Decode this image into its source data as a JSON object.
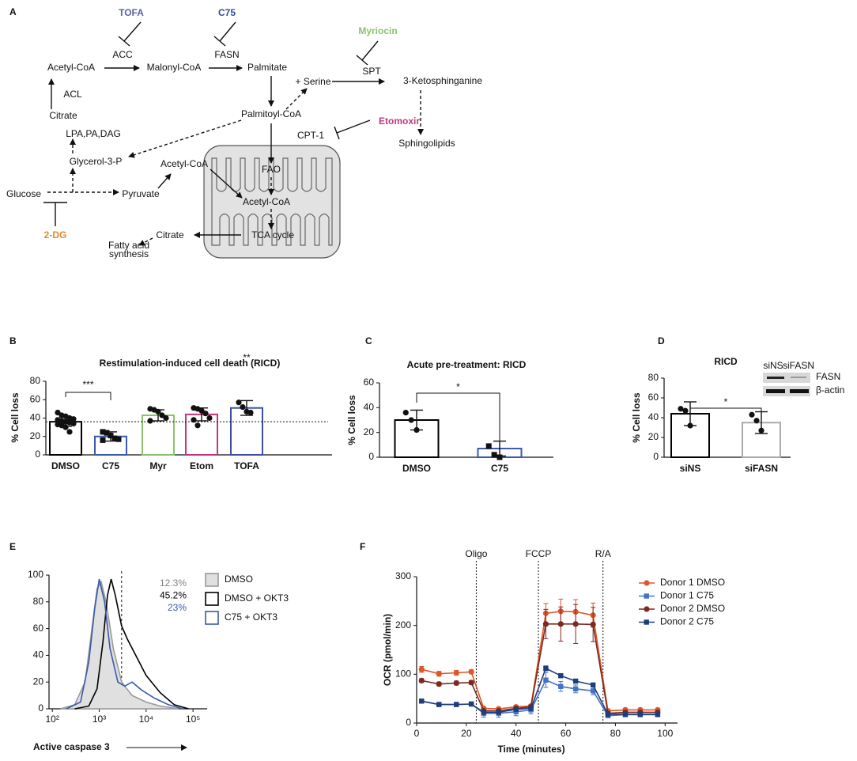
{
  "panel_labels": [
    "A",
    "B",
    "C",
    "D",
    "E",
    "F"
  ],
  "diagram": {
    "nodes": [
      {
        "label": "TOFA",
        "color": "#5b5fa8"
      },
      {
        "label": "C75",
        "color": "#2c4e9a"
      },
      {
        "label": "Myriocin",
        "color": "#8cc26b"
      },
      {
        "label": "ACC"
      },
      {
        "label": "FASN"
      },
      {
        "label": "SPT"
      },
      {
        "label": "Acetyl-CoA"
      },
      {
        "label": "Malonyl-CoA"
      },
      {
        "label": "Palmitate"
      },
      {
        "label": "+ Serine"
      },
      {
        "label": "3-Ketosphinganine"
      },
      {
        "label": "ACL"
      },
      {
        "label": "Citrate"
      },
      {
        "label": "Palmitoyl-CoA"
      },
      {
        "label": "Etomoxir",
        "color": "#c2377f"
      },
      {
        "label": "CPT-1"
      },
      {
        "label": "LPA,PA,DAG"
      },
      {
        "label": "Glycerol-3-P"
      },
      {
        "label": "Acetyl-CoA"
      },
      {
        "label": "Sphingolipids"
      },
      {
        "label": "FAO"
      },
      {
        "label": "Glucose"
      },
      {
        "label": "Pyruvate"
      },
      {
        "label": "Acetyl-CoA"
      },
      {
        "label": "TCA cycle"
      },
      {
        "label": "2-DG",
        "color": "#e08a2b"
      },
      {
        "label": "Citrate"
      },
      {
        "lines": [
          "Fatty acid",
          "synthesis"
        ]
      }
    ]
  },
  "chart_data": [
    {
      "type": "bar",
      "title": "Restimulation-induced cell death (RICD)",
      "ylabel": "% Cell loss",
      "categories": [
        "DMSO",
        "C75",
        "Myr",
        "Etom",
        "TOFA"
      ],
      "values": [
        36,
        20,
        43,
        44,
        51
      ],
      "errors": [
        5,
        5,
        6,
        7,
        8
      ],
      "colors": [
        "#000000",
        "#3a5aa8",
        "#8cc26b",
        "#c2377f",
        "#3d4fa0"
      ],
      "markers": [
        "circle",
        "square",
        "circle",
        "circle",
        "circle"
      ],
      "points": [
        [
          46,
          43,
          42,
          40,
          39,
          38,
          37,
          36,
          35,
          34,
          33,
          32,
          30,
          25
        ],
        [
          25,
          24,
          21,
          18,
          17,
          16
        ],
        [
          50,
          49,
          47,
          43,
          40,
          37
        ],
        [
          51,
          50,
          48,
          45,
          40,
          38,
          32
        ],
        [
          57,
          52,
          47,
          46
        ]
      ],
      "ylim": [
        0,
        80
      ],
      "yticks": [
        0,
        20,
        40,
        60,
        80
      ],
      "reference_line": 36,
      "annotations": [
        "***",
        "**"
      ]
    },
    {
      "type": "bar",
      "title": "Acute pre-treatment: RICD",
      "ylabel": "% Cell loss",
      "categories": [
        "DMSO",
        "C75"
      ],
      "values": [
        30,
        7
      ],
      "errors": [
        8,
        6
      ],
      "colors": [
        "#000000",
        "#3a5aa8"
      ],
      "markers": [
        "circle",
        "square"
      ],
      "points": [
        [
          36,
          30,
          22
        ],
        [
          9,
          2,
          0
        ]
      ],
      "ylim": [
        0,
        60
      ],
      "yticks": [
        0,
        20,
        40,
        60
      ],
      "annotations": [
        "*"
      ]
    },
    {
      "type": "bar",
      "title": "RICD",
      "ylabel": "% Cell loss",
      "categories": [
        "siNS",
        "siFASN"
      ],
      "values": [
        44,
        35
      ],
      "errors": [
        12,
        11
      ],
      "colors": [
        "#000000",
        "#aaaaaa"
      ],
      "markers": [
        "circle",
        "circle"
      ],
      "points": [
        [
          49,
          47,
          32
        ],
        [
          43,
          37,
          27
        ]
      ],
      "ylim": [
        0,
        80
      ],
      "yticks": [
        0,
        20,
        40,
        60,
        80
      ],
      "annotations": [
        "*"
      ],
      "inset_labels": [
        "siNS",
        "siFASN",
        "FASN",
        "β-actin"
      ]
    },
    {
      "type": "line",
      "xlabel": "Active caspase 3",
      "xscale": "log",
      "xlim": [
        85,
        200000
      ],
      "xticks": [
        {
          "value": 100,
          "label": "10²"
        },
        {
          "value": 1000,
          "label": "10³"
        },
        {
          "value": 10000,
          "label": "10⁴"
        },
        {
          "value": 100000,
          "label": "10⁵"
        }
      ],
      "ylim": [
        0,
        100
      ],
      "yticks": [
        0,
        20,
        40,
        60,
        80,
        100
      ],
      "gate": 3000,
      "series": [
        {
          "name": "DMSO",
          "color": "#9a9a9a",
          "fill": "#e0e0e0",
          "x": [
            150,
            300,
            500,
            700,
            900,
            1100,
            1400,
            2000,
            3000,
            5000,
            10000,
            20000,
            50000
          ],
          "values": [
            0,
            3,
            20,
            60,
            90,
            95,
            80,
            45,
            20,
            10,
            5,
            2,
            0
          ]
        },
        {
          "name": "DMSO + OKT3",
          "color": "#000000",
          "x": [
            300,
            600,
            900,
            1200,
            1500,
            1800,
            2200,
            3000,
            4000,
            6000,
            10000,
            20000,
            40000,
            80000
          ],
          "values": [
            0,
            2,
            15,
            50,
            85,
            97,
            85,
            62,
            52,
            40,
            25,
            12,
            3,
            0
          ]
        },
        {
          "name": "C75 + OKT3",
          "color": "#3a5aa8",
          "x": [
            200,
            400,
            600,
            800,
            1000,
            1300,
            1700,
            2500,
            3500,
            5000,
            8000,
            15000,
            30000,
            60000
          ],
          "values": [
            0,
            5,
            35,
            75,
            97,
            80,
            45,
            20,
            17,
            20,
            14,
            8,
            3,
            0
          ]
        }
      ],
      "annotations": [
        {
          "text": "12.3%",
          "color": "#808080"
        },
        {
          "text": "45.2%",
          "color": "#000000"
        },
        {
          "text": "23%",
          "color": "#3a5aa8"
        }
      ]
    },
    {
      "type": "line",
      "xlabel": "Time (minutes)",
      "ylabel": "OCR (pmol/min)",
      "xlim": [
        0,
        105
      ],
      "xticks": [
        0,
        20,
        40,
        60,
        80,
        100
      ],
      "ylim": [
        0,
        300
      ],
      "yticks": [
        0,
        100,
        200,
        300
      ],
      "events": [
        {
          "x": 24,
          "label": "Oligo"
        },
        {
          "x": 49,
          "label": "FCCP"
        },
        {
          "x": 75,
          "label": "R/A"
        }
      ],
      "x": [
        2,
        9,
        16,
        22,
        27,
        33,
        40,
        46,
        52,
        58,
        64,
        71,
        77,
        84,
        90,
        97
      ],
      "series": [
        {
          "name": "Donor 1 DMSO",
          "color": "#e0552a",
          "marker": "circle",
          "values": [
            110,
            101,
            103,
            105,
            30,
            29,
            33,
            35,
            225,
            229,
            228,
            221,
            25,
            27,
            27,
            27
          ],
          "errors": [
            6,
            5,
            5,
            4,
            3,
            3,
            3,
            3,
            20,
            25,
            25,
            25,
            3,
            3,
            3,
            3
          ]
        },
        {
          "name": "Donor 1 C75",
          "color": "#4472c4",
          "marker": "square",
          "values": [
            45,
            38,
            38,
            39,
            20,
            20,
            23,
            27,
            88,
            75,
            70,
            66,
            15,
            17,
            17,
            17
          ],
          "errors": [
            3,
            3,
            3,
            3,
            8,
            8,
            8,
            8,
            15,
            10,
            8,
            8,
            3,
            3,
            3,
            3
          ]
        },
        {
          "name": "Donor 2 DMSO",
          "color": "#7b2a1e",
          "marker": "circle",
          "values": [
            87,
            80,
            82,
            83,
            25,
            25,
            30,
            33,
            203,
            203,
            203,
            202,
            20,
            22,
            22,
            22
          ],
          "errors": [
            4,
            4,
            4,
            4,
            3,
            3,
            3,
            3,
            30,
            35,
            40,
            35,
            3,
            3,
            3,
            3
          ]
        },
        {
          "name": "Donor 2 C75",
          "color": "#1f3d7a",
          "marker": "square",
          "values": [
            45,
            38,
            38,
            39,
            22,
            22,
            28,
            30,
            112,
            97,
            86,
            78,
            18,
            18,
            18,
            18
          ],
          "errors": [
            2,
            2,
            2,
            2,
            3,
            3,
            3,
            3,
            5,
            4,
            4,
            4,
            2,
            2,
            2,
            2
          ]
        }
      ]
    }
  ]
}
